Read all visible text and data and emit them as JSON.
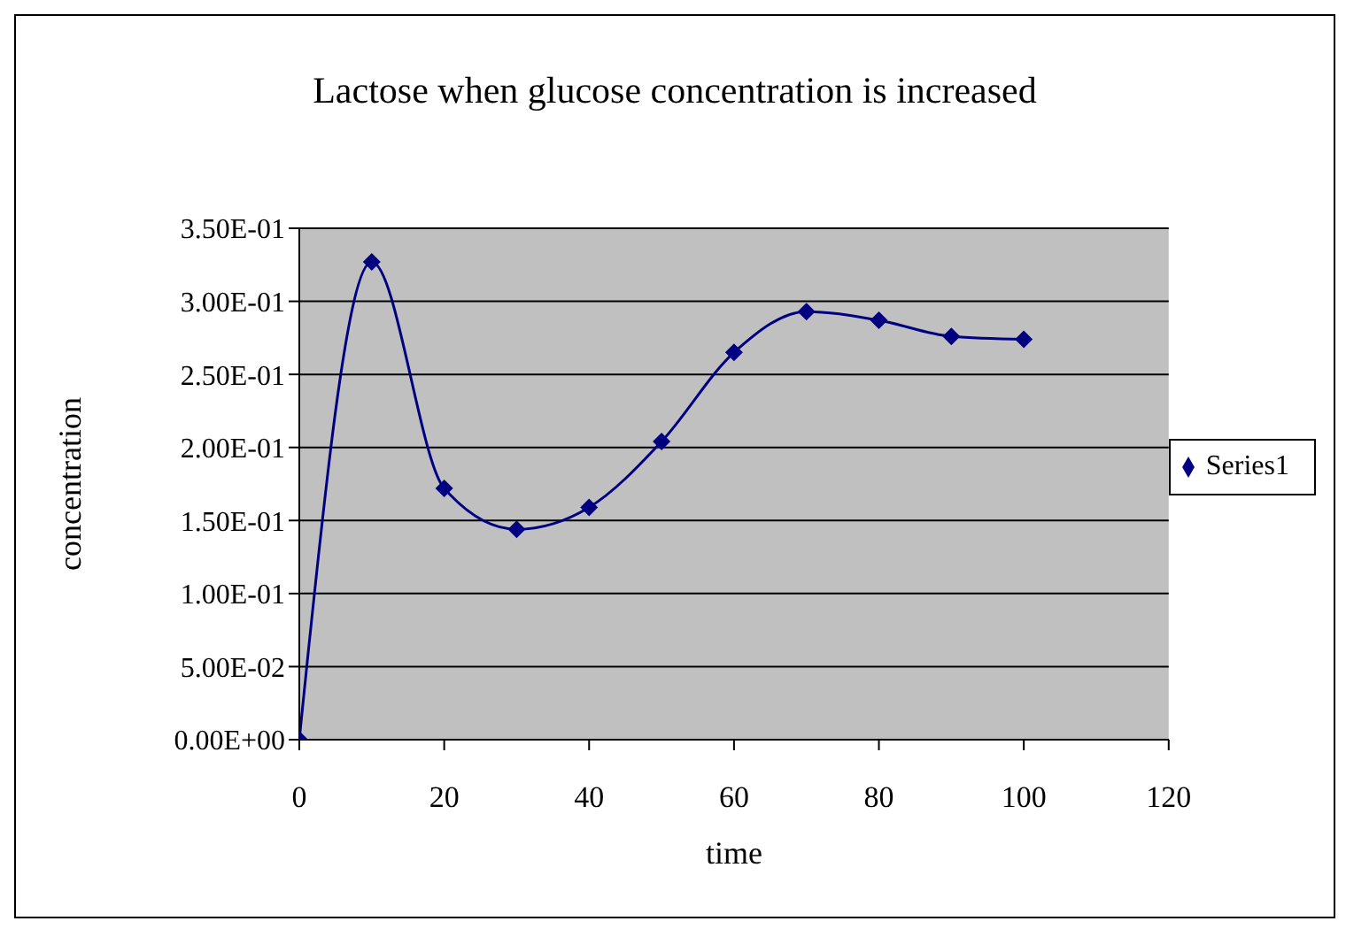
{
  "chart_data": {
    "type": "line",
    "title": "Lactose when glucose concentration is increased",
    "xlabel": "time",
    "ylabel": "concentration",
    "x": [
      0,
      10,
      20,
      30,
      40,
      50,
      60,
      70,
      80,
      90,
      100
    ],
    "series": [
      {
        "name": "Series1",
        "color": "#000080",
        "values": [
          0,
          0.327,
          0.172,
          0.144,
          0.159,
          0.204,
          0.265,
          0.293,
          0.287,
          0.276,
          0.274
        ]
      }
    ],
    "xlim": [
      0,
      120
    ],
    "xticks": [
      0,
      20,
      40,
      60,
      80,
      100,
      120
    ],
    "ylim": [
      0,
      0.35
    ],
    "yticks": [
      {
        "value": 0,
        "label": "0.00E+00"
      },
      {
        "value": 0.05,
        "label": "5.00E-02"
      },
      {
        "value": 0.1,
        "label": "1.00E-01"
      },
      {
        "value": 0.15,
        "label": "1.50E-01"
      },
      {
        "value": 0.2,
        "label": "2.00E-01"
      },
      {
        "value": 0.25,
        "label": "2.50E-01"
      },
      {
        "value": 0.3,
        "label": "3.00E-01"
      },
      {
        "value": 0.35,
        "label": "3.50E-01"
      }
    ],
    "grid": "y",
    "legend": "right",
    "marker": "diamond",
    "line_style": "solid"
  }
}
